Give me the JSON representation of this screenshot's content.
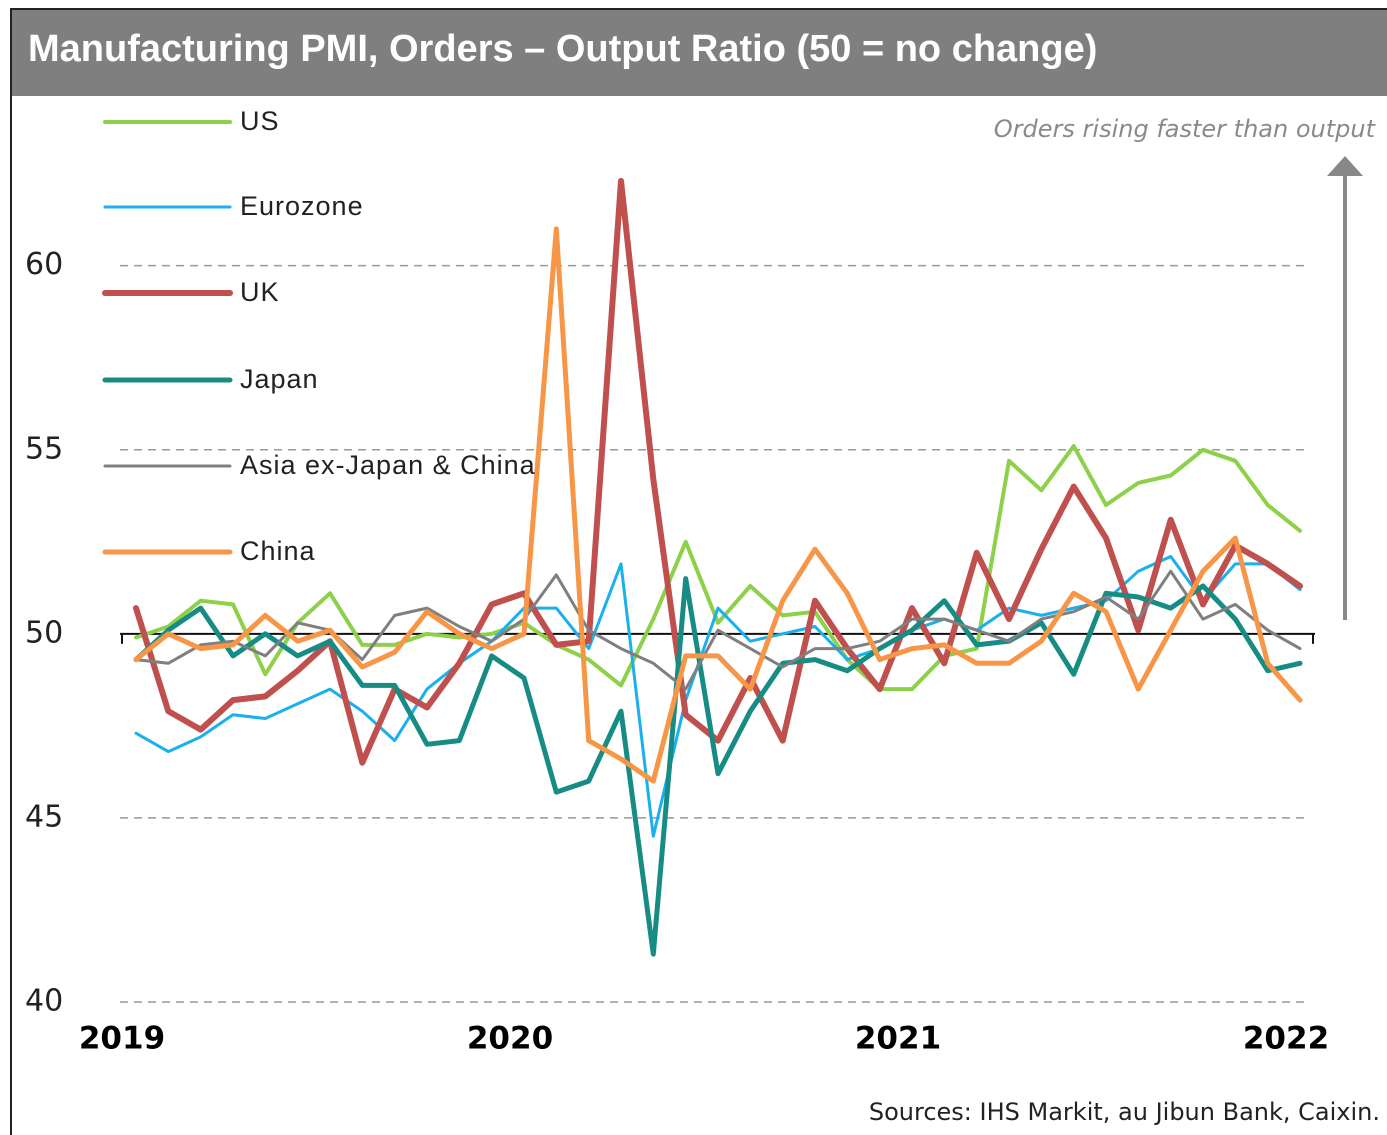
{
  "chart_data": {
    "type": "line",
    "title": "Manufacturing PMI, Orders – Output Ratio (50 = no change)",
    "annotation": "Orders rising faster than output",
    "source": "Sources: IHS Markit, au Jibun Bank, Caixin.",
    "categories": [
      "2019",
      null,
      null,
      null,
      null,
      null,
      null,
      null,
      null,
      null,
      null,
      null,
      "2020",
      null,
      null,
      null,
      null,
      null,
      null,
      null,
      null,
      null,
      null,
      null,
      "2021",
      null,
      null,
      null,
      null,
      null,
      null,
      null,
      null,
      null,
      null,
      null,
      "2022"
    ],
    "ylim": [
      40,
      64.5
    ],
    "yticks": [
      40,
      45,
      50,
      55,
      60
    ],
    "reference_line": 50,
    "grid": true,
    "legend": "top-left",
    "series": [
      {
        "name": "US",
        "color": "#8dd04a",
        "line_width": 4,
        "values": [
          49.9,
          50.2,
          50.9,
          50.8,
          48.9,
          50.3,
          51.1,
          49.7,
          49.7,
          50.0,
          49.9,
          50.0,
          50.3,
          49.7,
          49.3,
          48.6,
          50.4,
          52.5,
          50.3,
          51.3,
          50.5,
          50.6,
          49.3,
          48.5,
          48.5,
          49.4,
          49.6,
          54.7,
          53.9,
          55.1,
          53.5,
          54.1,
          54.3,
          55.0,
          54.7,
          53.5,
          52.8
        ]
      },
      {
        "name": "Eurozone",
        "color": "#1ab0ee",
        "line_width": 3,
        "values": [
          47.3,
          46.8,
          47.2,
          47.8,
          47.7,
          48.1,
          48.5,
          47.9,
          47.1,
          48.5,
          49.2,
          49.8,
          50.7,
          50.7,
          49.6,
          51.9,
          44.5,
          48.2,
          50.7,
          49.8,
          50.0,
          50.2,
          49.3,
          49.6,
          50.1,
          50.4,
          50.1,
          50.7,
          50.5,
          50.7,
          50.9,
          51.7,
          52.1,
          50.9,
          51.9,
          51.9,
          51.2
        ]
      },
      {
        "name": "UK",
        "color": "#c0504d",
        "line_width": 6,
        "values": [
          50.7,
          47.9,
          47.4,
          48.2,
          48.3,
          49.0,
          49.8,
          46.5,
          48.5,
          48.0,
          49.2,
          50.8,
          51.1,
          49.7,
          49.8,
          62.3,
          54.2,
          47.8,
          47.1,
          48.8,
          47.1,
          50.9,
          49.6,
          48.5,
          50.7,
          49.2,
          52.2,
          50.4,
          52.3,
          54.0,
          52.6,
          50.1,
          53.1,
          50.8,
          52.4,
          51.9,
          51.3
        ]
      },
      {
        "name": "Japan",
        "color": "#168c84",
        "line_width": 5,
        "values": [
          49.3,
          50.1,
          50.7,
          49.4,
          50.0,
          49.4,
          49.8,
          48.6,
          48.6,
          47.0,
          47.1,
          49.4,
          48.8,
          45.7,
          46.0,
          47.9,
          41.3,
          51.5,
          46.2,
          47.9,
          49.2,
          49.3,
          49.0,
          49.6,
          50.1,
          50.9,
          49.7,
          49.8,
          50.3,
          48.9,
          51.1,
          51.0,
          50.7,
          51.3,
          50.4,
          49.0,
          49.2
        ]
      },
      {
        "name": "Asia ex-Japan & China",
        "color": "#7f7f7f",
        "line_width": 3,
        "values": [
          49.3,
          49.2,
          49.7,
          49.8,
          49.4,
          50.3,
          50.1,
          49.3,
          50.5,
          50.7,
          50.2,
          49.8,
          50.4,
          51.6,
          50.1,
          49.6,
          49.2,
          48.5,
          50.1,
          49.6,
          49.1,
          49.6,
          49.6,
          49.8,
          50.4,
          50.4,
          50.1,
          49.8,
          50.4,
          50.6,
          51.0,
          50.4,
          51.7,
          50.4,
          50.8,
          50.1,
          49.6
        ]
      },
      {
        "name": "China",
        "color": "#f79646",
        "line_width": 5,
        "values": [
          49.3,
          50.0,
          49.6,
          49.7,
          50.5,
          49.8,
          50.1,
          49.1,
          49.5,
          50.6,
          50.0,
          49.6,
          50.0,
          61.0,
          47.1,
          46.6,
          46.0,
          49.4,
          49.4,
          48.5,
          50.9,
          52.3,
          51.1,
          49.3,
          49.6,
          49.7,
          49.2,
          49.2,
          49.8,
          51.1,
          50.6,
          48.5,
          50.1,
          51.7,
          52.6,
          49.2,
          48.2
        ]
      }
    ]
  }
}
